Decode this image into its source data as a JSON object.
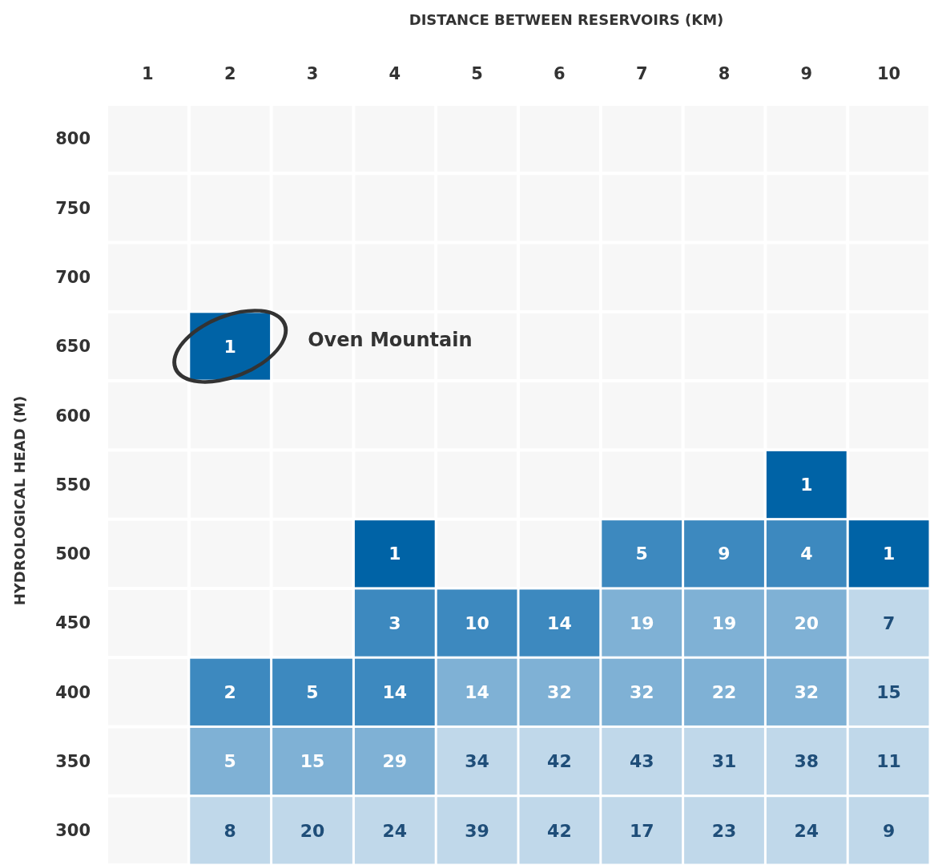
{
  "chart_data": {
    "type": "heatmap",
    "xlabel": "DISTANCE BETWEEN RESERVOIRS (KM)",
    "ylabel": "HYDROLOGICAL HEAD (M)",
    "categories": [
      "1",
      "2",
      "3",
      "4",
      "5",
      "6",
      "7",
      "8",
      "9",
      "10"
    ],
    "y_categories": [
      "800",
      "750",
      "700",
      "650",
      "600",
      "550",
      "500",
      "450",
      "400",
      "350",
      "300"
    ],
    "cells": [
      [
        null,
        null,
        null,
        null,
        null,
        null,
        null,
        null,
        null,
        null
      ],
      [
        null,
        null,
        null,
        null,
        null,
        null,
        null,
        null,
        null,
        null
      ],
      [
        null,
        null,
        null,
        null,
        null,
        null,
        null,
        null,
        null,
        null
      ],
      [
        null,
        1,
        null,
        null,
        null,
        null,
        null,
        null,
        null,
        null
      ],
      [
        null,
        null,
        null,
        null,
        null,
        null,
        null,
        null,
        null,
        null
      ],
      [
        null,
        null,
        null,
        null,
        null,
        null,
        null,
        null,
        1,
        null
      ],
      [
        null,
        null,
        null,
        1,
        null,
        null,
        5,
        9,
        4,
        1
      ],
      [
        null,
        null,
        null,
        3,
        10,
        14,
        19,
        19,
        20,
        7
      ],
      [
        null,
        2,
        5,
        14,
        14,
        32,
        32,
        22,
        32,
        15
      ],
      [
        null,
        5,
        15,
        29,
        34,
        42,
        43,
        31,
        38,
        11
      ],
      [
        null,
        8,
        20,
        24,
        39,
        42,
        17,
        23,
        24,
        9
      ]
    ],
    "colors": [
      [
        null,
        null,
        null,
        null,
        null,
        null,
        null,
        null,
        null,
        null
      ],
      [
        null,
        null,
        null,
        null,
        null,
        null,
        null,
        null,
        null,
        null
      ],
      [
        null,
        null,
        null,
        null,
        null,
        null,
        null,
        null,
        null,
        null
      ],
      [
        null,
        "#0063a6",
        null,
        null,
        null,
        null,
        null,
        null,
        null,
        null
      ],
      [
        null,
        null,
        null,
        null,
        null,
        null,
        null,
        null,
        null,
        null
      ],
      [
        null,
        null,
        null,
        null,
        null,
        null,
        null,
        null,
        "#0063a6",
        null
      ],
      [
        null,
        null,
        null,
        "#0063a6",
        null,
        null,
        "#3d89bf",
        "#3d89bf",
        "#3d89bf",
        "#0063a6"
      ],
      [
        null,
        null,
        null,
        "#3d89bf",
        "#3d89bf",
        "#3d89bf",
        "#7fb1d5",
        "#7fb1d5",
        "#7fb1d5",
        "#c0d8ea"
      ],
      [
        null,
        "#3d89bf",
        "#3d89bf",
        "#3d89bf",
        "#7fb1d5",
        "#7fb1d5",
        "#7fb1d5",
        "#7fb1d5",
        "#7fb1d5",
        "#c0d8ea"
      ],
      [
        null,
        "#7fb1d5",
        "#7fb1d5",
        "#7fb1d5",
        "#c0d8ea",
        "#c0d8ea",
        "#c0d8ea",
        "#c0d8ea",
        "#c0d8ea",
        "#c0d8ea"
      ],
      [
        null,
        "#c0d8ea",
        "#c0d8ea",
        "#c0d8ea",
        "#c0d8ea",
        "#c0d8ea",
        "#c0d8ea",
        "#c0d8ea",
        "#c0d8ea",
        "#c0d8ea"
      ]
    ],
    "data_labels": true,
    "annotations": [
      "Oven Mountain"
    ]
  }
}
